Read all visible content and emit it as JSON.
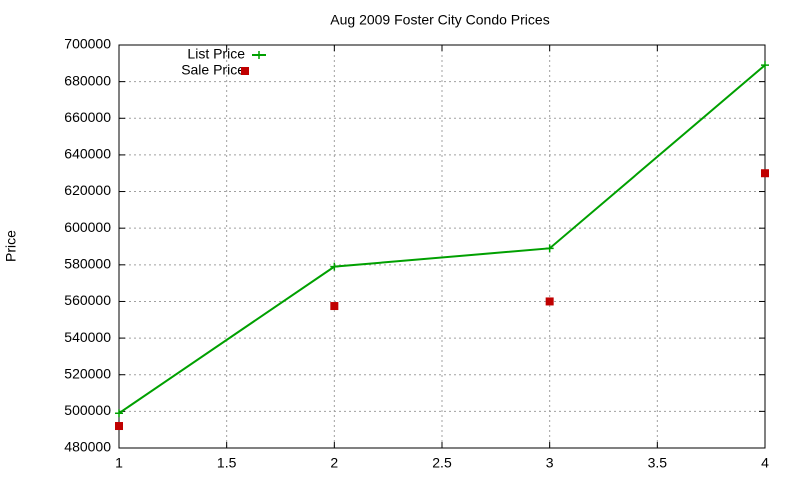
{
  "chart_data": {
    "type": "line",
    "title": "Aug 2009 Foster City Condo Prices",
    "y_label": "Price",
    "x": [
      1,
      2,
      3,
      4
    ],
    "series": [
      {
        "name": "List Price",
        "color": "#00a000",
        "mode": "linespoints",
        "values": [
          499000,
          579000,
          589000,
          689000
        ]
      },
      {
        "name": "Sale Price",
        "color": "#c00000",
        "mode": "points",
        "values": [
          492000,
          557500,
          560000,
          630000
        ]
      }
    ],
    "xlim": [
      1,
      4
    ],
    "xticks": [
      1,
      1.5,
      2,
      2.5,
      3,
      3.5,
      4
    ],
    "ylim": [
      480000,
      700000
    ],
    "yticks": [
      480000,
      500000,
      520000,
      540000,
      560000,
      580000,
      600000,
      620000,
      640000,
      660000,
      680000,
      700000
    ],
    "grid": true,
    "legend": "top-left"
  }
}
